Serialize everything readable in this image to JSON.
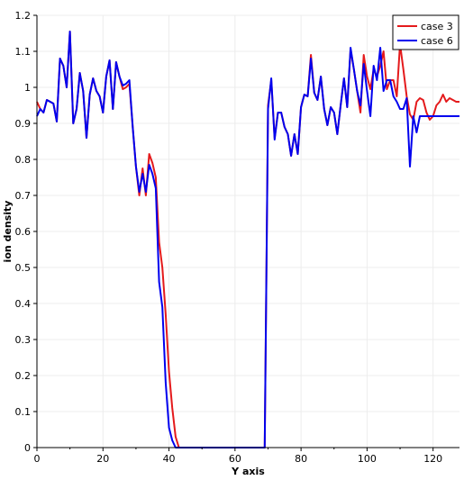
{
  "chart_data": {
    "type": "line",
    "title": "",
    "xlabel": "Y axis",
    "ylabel": "ion density",
    "xlim": [
      0,
      128
    ],
    "ylim": [
      0,
      1.2
    ],
    "xticks": [
      "0",
      "20",
      "40",
      "60",
      "80",
      "100",
      "120"
    ],
    "yticks": [
      "0",
      "0.1",
      "0.2",
      "0.3",
      "0.4",
      "0.5",
      "0.6",
      "0.7",
      "0.8",
      "0.9",
      "1",
      "1.1",
      "1.2"
    ],
    "grid": true,
    "legend_position": "top-right",
    "series": [
      {
        "name": "case 3",
        "color": "#e41a1c",
        "x": [
          0,
          1,
          2,
          3,
          4,
          5,
          6,
          7,
          8,
          9,
          10,
          11,
          12,
          13,
          14,
          15,
          16,
          17,
          18,
          19,
          20,
          21,
          22,
          23,
          24,
          25,
          26,
          27,
          28,
          29,
          30,
          31,
          32,
          33,
          34,
          35,
          36,
          37,
          38,
          39,
          40,
          41,
          42,
          43,
          44,
          45,
          46,
          47,
          48,
          49,
          50,
          51,
          52,
          53,
          54,
          55,
          56,
          57,
          58,
          59,
          60,
          61,
          62,
          63,
          64,
          65,
          66,
          67,
          68,
          69,
          70,
          71,
          72,
          73,
          74,
          75,
          76,
          77,
          78,
          79,
          80,
          81,
          82,
          83,
          84,
          85,
          86,
          87,
          88,
          89,
          90,
          91,
          92,
          93,
          94,
          95,
          96,
          97,
          98,
          99,
          100,
          101,
          102,
          103,
          104,
          105,
          106,
          107,
          108,
          109,
          110,
          111,
          112,
          113,
          114,
          115,
          116,
          117,
          118,
          119,
          120,
          121,
          122,
          123,
          124,
          125,
          126,
          127,
          128
        ],
        "y": [
          0.96,
          0.94,
          0.93,
          0.965,
          0.96,
          0.955,
          0.905,
          1.08,
          1.06,
          1.0,
          1.155,
          0.9,
          0.94,
          1.04,
          0.99,
          0.86,
          0.98,
          1.025,
          0.99,
          0.975,
          0.93,
          1.03,
          1.075,
          0.94,
          1.07,
          1.03,
          0.995,
          1.0,
          1.01,
          0.89,
          0.78,
          0.7,
          0.775,
          0.7,
          0.815,
          0.79,
          0.75,
          0.57,
          0.5,
          0.37,
          0.21,
          0.11,
          0.03,
          0.0,
          0.0,
          0.0,
          0.0,
          0.0,
          0.0,
          0.0,
          0.0,
          0.0,
          0.0,
          0.0,
          0.0,
          0.0,
          0.0,
          0.0,
          0.0,
          0.0,
          0.0,
          0.0,
          0.0,
          0.0,
          0.0,
          0.0,
          0.0,
          0.0,
          0.0,
          0.0,
          0.95,
          1.02,
          0.86,
          0.93,
          0.93,
          0.89,
          0.87,
          0.81,
          0.87,
          0.815,
          0.945,
          0.98,
          0.975,
          1.09,
          0.985,
          0.965,
          1.03,
          0.94,
          0.895,
          0.945,
          0.93,
          0.87,
          0.95,
          1.025,
          0.945,
          1.105,
          1.05,
          0.99,
          0.93,
          1.09,
          1.03,
          0.995,
          1.05,
          1.03,
          1.06,
          1.1,
          0.995,
          1.02,
          1.02,
          0.975,
          1.12,
          1.05,
          0.975,
          0.925,
          0.91,
          0.96,
          0.97,
          0.965,
          0.93,
          0.91,
          0.92,
          0.95,
          0.96,
          0.98,
          0.96,
          0.97,
          0.965,
          0.96,
          0.96
        ],
        "x_end": 128
      },
      {
        "name": "case 6",
        "color": "#0000ee",
        "x": [
          0,
          1,
          2,
          3,
          4,
          5,
          6,
          7,
          8,
          9,
          10,
          11,
          12,
          13,
          14,
          15,
          16,
          17,
          18,
          19,
          20,
          21,
          22,
          23,
          24,
          25,
          26,
          27,
          28,
          29,
          30,
          31,
          32,
          33,
          34,
          35,
          36,
          37,
          38,
          39,
          40,
          41,
          42,
          43,
          44,
          45,
          46,
          47,
          48,
          49,
          50,
          51,
          52,
          53,
          54,
          55,
          56,
          57,
          58,
          59,
          60,
          61,
          62,
          63,
          64,
          65,
          66,
          67,
          68,
          69,
          70,
          71,
          72,
          73,
          74,
          75,
          76,
          77,
          78,
          79,
          80,
          81,
          82,
          83,
          84,
          85,
          86,
          87,
          88,
          89,
          90,
          91,
          92,
          93,
          94,
          95,
          96,
          97,
          98,
          99,
          100,
          101,
          102,
          103,
          104,
          105,
          106,
          107,
          108,
          109,
          110,
          111,
          112,
          113,
          114,
          115,
          116,
          117,
          118,
          119,
          120,
          121,
          122,
          123,
          124,
          125,
          126,
          127,
          128
        ],
        "y": [
          0.92,
          0.94,
          0.93,
          0.965,
          0.96,
          0.955,
          0.905,
          1.08,
          1.06,
          1.0,
          1.155,
          0.9,
          0.94,
          1.04,
          0.99,
          0.86,
          0.98,
          1.025,
          0.99,
          0.975,
          0.93,
          1.03,
          1.075,
          0.94,
          1.07,
          1.03,
          1.005,
          1.01,
          1.02,
          0.89,
          0.78,
          0.71,
          0.76,
          0.71,
          0.785,
          0.76,
          0.72,
          0.46,
          0.39,
          0.18,
          0.055,
          0.02,
          0.0,
          0.0,
          0.0,
          0.0,
          0.0,
          0.0,
          0.0,
          0.0,
          0.0,
          0.0,
          0.0,
          0.0,
          0.0,
          0.0,
          0.0,
          0.0,
          0.0,
          0.0,
          0.0,
          0.0,
          0.0,
          0.0,
          0.0,
          0.0,
          0.0,
          0.0,
          0.0,
          0.0,
          0.94,
          1.025,
          0.855,
          0.93,
          0.93,
          0.89,
          0.87,
          0.81,
          0.87,
          0.815,
          0.945,
          0.98,
          0.975,
          1.08,
          0.985,
          0.965,
          1.03,
          0.94,
          0.895,
          0.945,
          0.93,
          0.87,
          0.95,
          1.025,
          0.945,
          1.11,
          1.05,
          0.99,
          0.95,
          1.065,
          0.99,
          0.92,
          1.06,
          1.02,
          1.11,
          0.99,
          1.02,
          1.02,
          0.975,
          0.96,
          0.94,
          0.94,
          0.97,
          0.78,
          0.92,
          0.875,
          0.92,
          0.92,
          0.92,
          0.92,
          0.92,
          0.92,
          0.92,
          0.92,
          0.92,
          0.92,
          0.92,
          0.92,
          0.92
        ],
        "x_end": 128
      }
    ]
  }
}
